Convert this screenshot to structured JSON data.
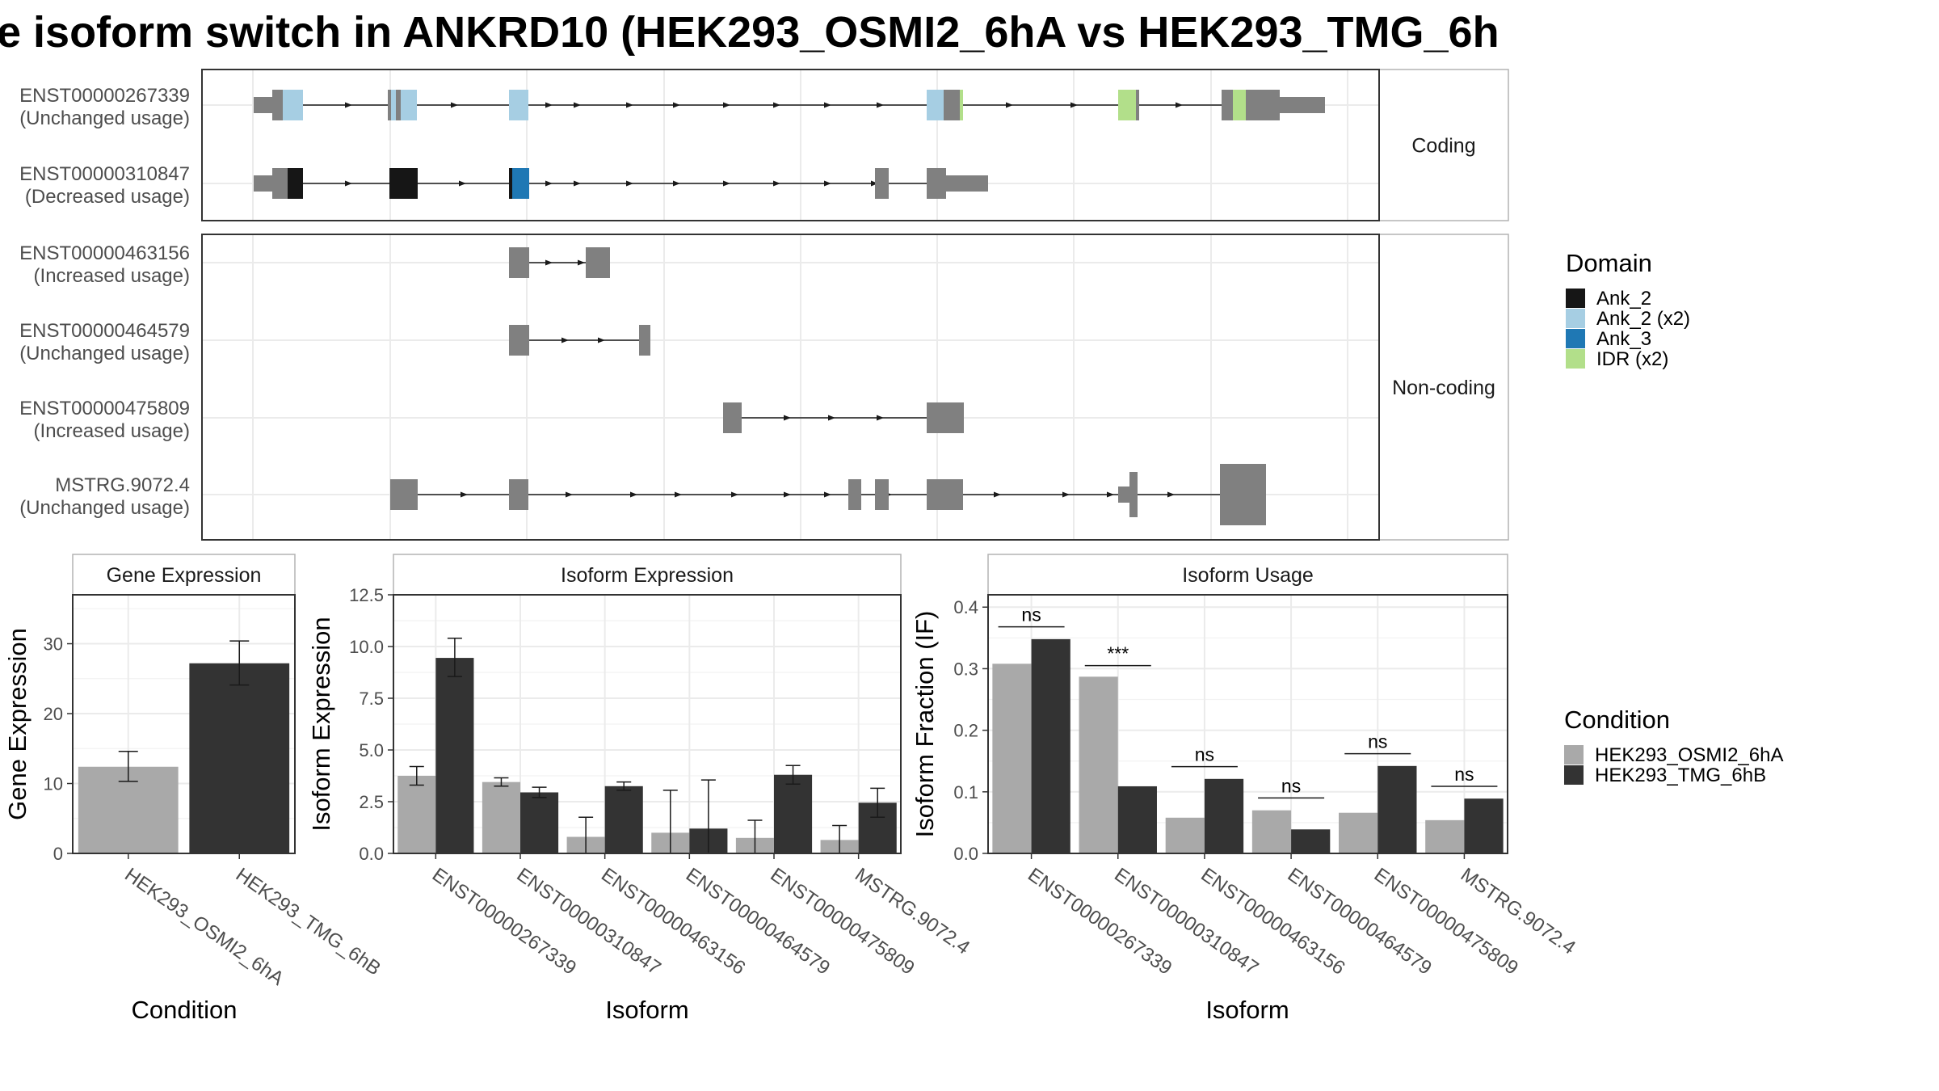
{
  "title": "e isoform switch in ANKRD10 (HEK293_OSMI2_6hA vs HEK293_TMG_6h",
  "structure": {
    "coding_label": "Coding",
    "noncoding_label": "Non-coding",
    "transcripts": [
      {
        "id": "ENST00000267339",
        "usage": "(Unchanged usage)",
        "group": "coding"
      },
      {
        "id": "ENST00000310847",
        "usage": "(Decreased usage)",
        "group": "coding"
      },
      {
        "id": "ENST00000463156",
        "usage": "(Increased usage)",
        "group": "noncoding"
      },
      {
        "id": "ENST00000464579",
        "usage": "(Unchanged usage)",
        "group": "noncoding"
      },
      {
        "id": "ENST00000475809",
        "usage": "(Increased usage)",
        "group": "noncoding"
      },
      {
        "id": "MSTRG.9072.4",
        "usage": "(Unchanged usage)",
        "group": "noncoding"
      }
    ]
  },
  "legend_domain": {
    "title": "Domain",
    "items": [
      {
        "label": "Ank_2",
        "color": "#161616"
      },
      {
        "label": "Ank_2 (x2)",
        "color": "#a6cee3"
      },
      {
        "label": "Ank_3",
        "color": "#1f78b4"
      },
      {
        "label": "IDR (x2)",
        "color": "#b2df8a"
      }
    ]
  },
  "legend_condition": {
    "title": "Condition",
    "items": [
      {
        "label": "HEK293_OSMI2_6hA",
        "color": "#a9a9a9"
      },
      {
        "label": "HEK293_TMG_6hB",
        "color": "#333333"
      }
    ]
  },
  "chart_data": [
    {
      "type": "bar",
      "panel": "Gene Expression",
      "title": "Gene Expression",
      "xlabel": "Condition",
      "ylabel": "Gene Expression",
      "categories": [
        "HEK293_OSMI2_6hA",
        "HEK293_TMG_6hB"
      ],
      "values": [
        12.4,
        27.2
      ],
      "error_low": [
        10.3,
        24.1
      ],
      "error_high": [
        14.6,
        30.4
      ],
      "ylim": [
        0,
        37
      ],
      "yticks": [
        0,
        10,
        20,
        30
      ]
    },
    {
      "type": "bar",
      "panel": "Isoform Expression",
      "title": "Isoform Expression",
      "xlabel": "Isoform",
      "ylabel": "Isoform Expression",
      "categories": [
        "ENST00000267339",
        "ENST00000310847",
        "ENST00000463156",
        "ENST00000464579",
        "ENST00000475809",
        "MSTRG.9072.4"
      ],
      "series": [
        {
          "name": "HEK293_OSMI2_6hA",
          "values": [
            3.75,
            3.45,
            0.8,
            1.0,
            0.75,
            0.65
          ],
          "error_low": [
            3.3,
            3.25,
            0.0,
            0.0,
            0.0,
            0.0
          ],
          "error_high": [
            4.2,
            3.65,
            1.75,
            3.05,
            1.6,
            1.35
          ]
        },
        {
          "name": "HEK293_TMG_6hB",
          "values": [
            9.45,
            2.95,
            3.25,
            1.2,
            3.8,
            2.45
          ],
          "error_low": [
            8.55,
            2.7,
            3.05,
            0.0,
            3.35,
            1.75
          ],
          "error_high": [
            10.4,
            3.2,
            3.45,
            3.55,
            4.25,
            3.15
          ]
        }
      ],
      "ylim": [
        0,
        12.5
      ],
      "yticks": [
        "0.0",
        "2.5",
        "5.0",
        "7.5",
        "10.0",
        "12.5"
      ]
    },
    {
      "type": "bar",
      "panel": "Isoform Usage",
      "title": "Isoform Usage",
      "xlabel": "Isoform",
      "ylabel": "Isoform Fraction (IF)",
      "categories": [
        "ENST00000267339",
        "ENST00000310847",
        "ENST00000463156",
        "ENST00000464579",
        "ENST00000475809",
        "MSTRG.9072.4"
      ],
      "series": [
        {
          "name": "HEK293_OSMI2_6hA",
          "values": [
            0.308,
            0.287,
            0.058,
            0.07,
            0.066,
            0.054
          ]
        },
        {
          "name": "HEK293_TMG_6hB",
          "values": [
            0.348,
            0.109,
            0.121,
            0.039,
            0.142,
            0.089
          ]
        }
      ],
      "significance": [
        "ns",
        "***",
        "ns",
        "ns",
        "ns",
        "ns"
      ],
      "sig_y": [
        0.368,
        0.305,
        0.141,
        0.09,
        0.162,
        0.109
      ],
      "ylim": [
        0,
        0.42
      ],
      "yticks": [
        "0.0",
        "0.1",
        "0.2",
        "0.3",
        "0.4"
      ]
    }
  ]
}
